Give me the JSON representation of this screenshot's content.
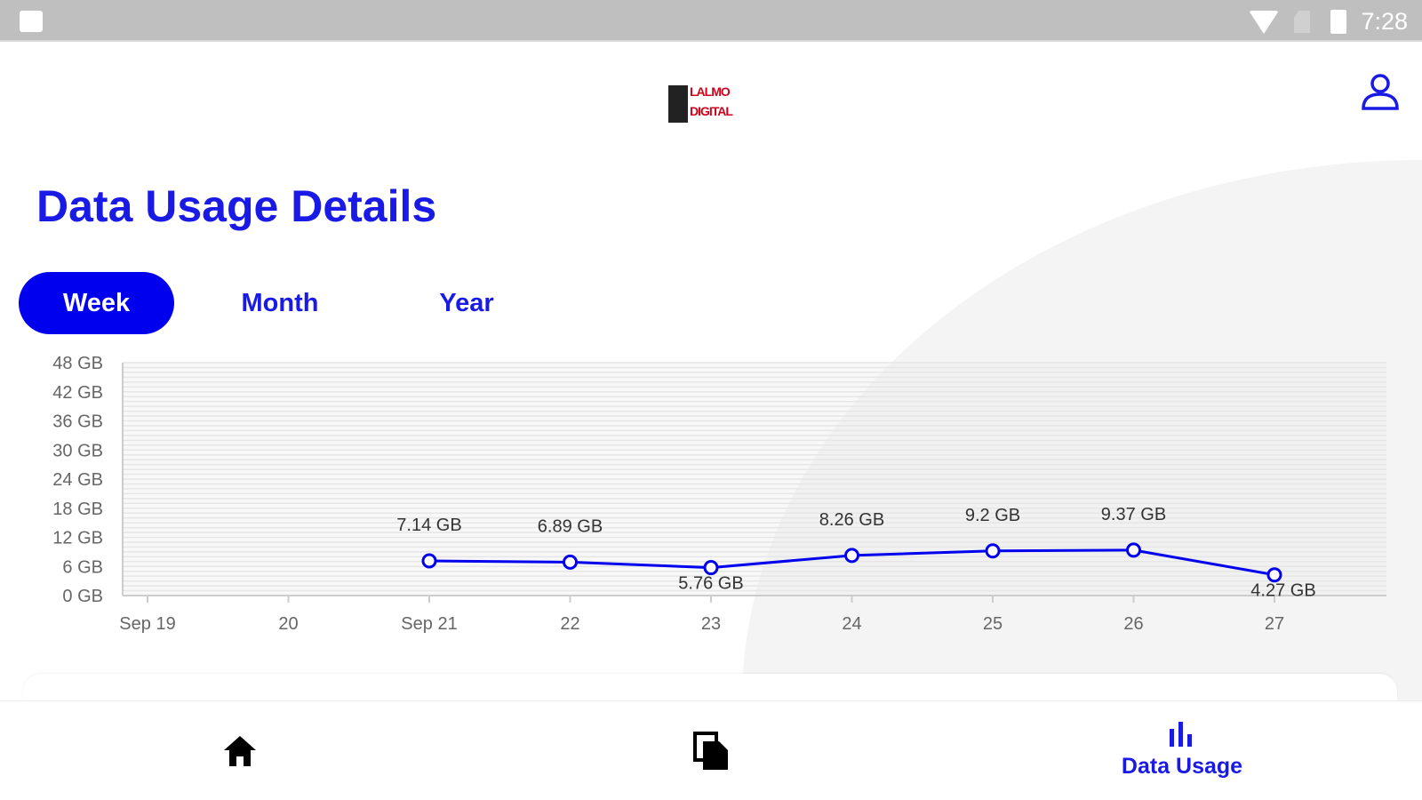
{
  "status_bar": {
    "time": "7:28",
    "icons": [
      "image-icon",
      "wifi-icon",
      "no-sim-icon",
      "battery-icon"
    ]
  },
  "header": {
    "logo_text": "LALMO DIGITAL",
    "profile_icon": "user-icon"
  },
  "page_title": "Data Usage Details",
  "tabs": [
    {
      "label": "Week",
      "active": true
    },
    {
      "label": "Month",
      "active": false
    },
    {
      "label": "Year",
      "active": false
    }
  ],
  "colors": {
    "accent": "#0000ee",
    "title": "#1a1ae6"
  },
  "chart_data": {
    "type": "line",
    "x": [
      "Sep 19",
      "20",
      "Sep 21",
      "22",
      "23",
      "24",
      "25",
      "26",
      "27"
    ],
    "series": [
      {
        "values": [
          null,
          null,
          7.14,
          6.89,
          5.76,
          8.26,
          9.2,
          9.37,
          4.27
        ],
        "labels": [
          null,
          null,
          "7.14 GB",
          "6.89 GB",
          "5.76 GB",
          "8.26 GB",
          "9.2 GB",
          "9.37 GB",
          "4.27 GB"
        ]
      }
    ],
    "yticks": [
      "0 GB",
      "6 GB",
      "12 GB",
      "18 GB",
      "24 GB",
      "30 GB",
      "36 GB",
      "42 GB",
      "48 GB"
    ],
    "ylim": [
      0,
      48
    ],
    "grid": true
  },
  "bottom_nav": [
    {
      "icon": "home-icon"
    },
    {
      "icon": "documents-icon"
    },
    {
      "icon": "bar-chart-icon",
      "label": "Data Usage",
      "active": true
    }
  ]
}
